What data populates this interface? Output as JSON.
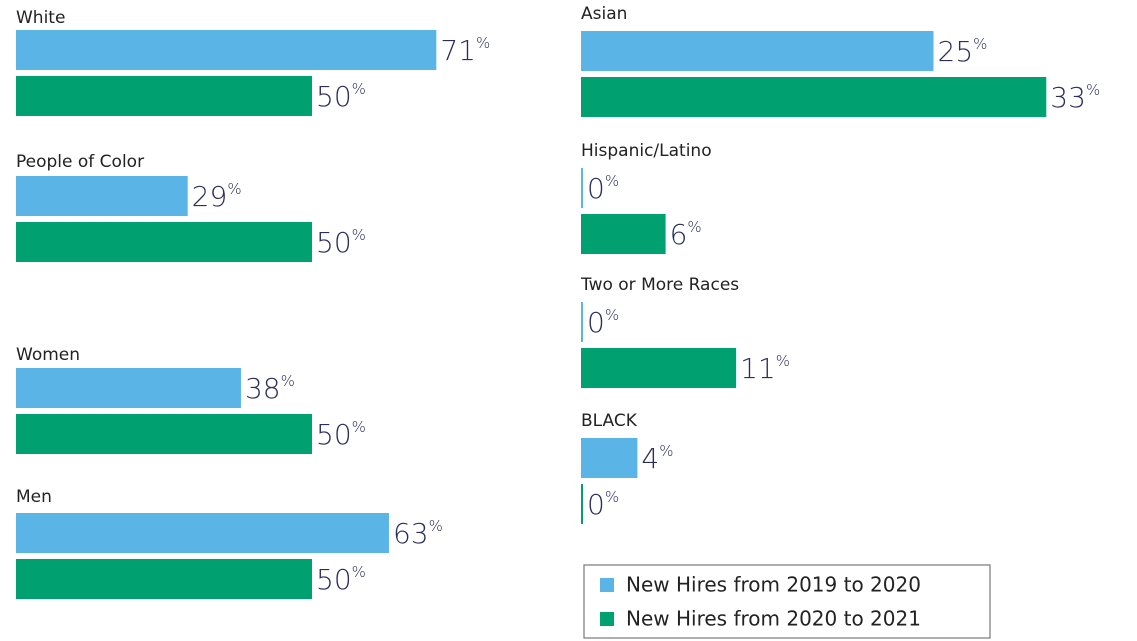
{
  "chart_data": [
    {
      "type": "bar",
      "orientation": "horizontal",
      "categories": [
        "White",
        "People of Color",
        "Women",
        "Men"
      ],
      "series": [
        {
          "name": "New Hires from 2019 to 2020",
          "color": "#5ab4e5",
          "values": [
            71,
            29,
            38,
            63
          ],
          "value_labels": [
            "71%",
            "29%",
            "38%",
            "63%"
          ]
        },
        {
          "name": "New Hires from 2020 to 2021",
          "color": "#00a070",
          "values": [
            50,
            50,
            50,
            50
          ],
          "value_labels": [
            "50%",
            "50%",
            "50%",
            "50%"
          ]
        }
      ],
      "xlim": [
        0,
        100
      ]
    },
    {
      "type": "bar",
      "orientation": "horizontal",
      "categories": [
        "Asian",
        "Hispanic/Latino",
        "Two or More Races",
        "BLACK"
      ],
      "series": [
        {
          "color": "#5ab4e5",
          "values": [
            25,
            0,
            0,
            4
          ],
          "value_labels": [
            "25%",
            "0%",
            "0%",
            "4%"
          ]
        },
        {
          "color": "#00a070",
          "values": [
            33,
            6,
            11,
            0
          ],
          "value_labels": [
            "33%",
            "6%",
            "11%",
            "0%"
          ]
        }
      ],
      "xlim": [
        0,
        40
      ]
    }
  ]
}
